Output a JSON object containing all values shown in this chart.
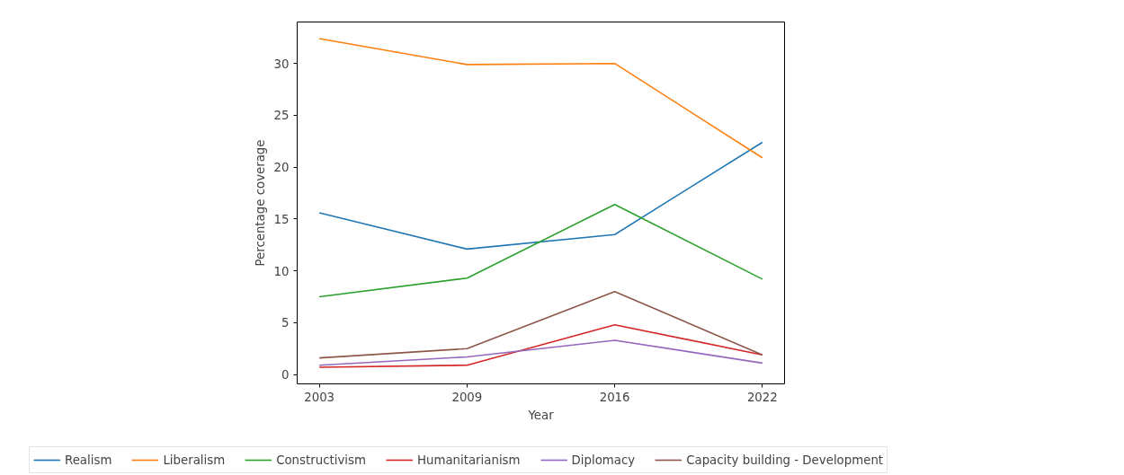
{
  "chart_data": {
    "type": "line",
    "xlabel": "Year",
    "ylabel": "Percentage coverage",
    "categories": [
      "2003",
      "2009",
      "2016",
      "2022"
    ],
    "ylim": [
      -0.9,
      34.0
    ],
    "yticks": [
      0,
      5,
      10,
      15,
      20,
      25,
      30
    ],
    "grid": false,
    "legend": "bottom",
    "series": [
      {
        "name": "Realism",
        "color": "#1f77b4",
        "values": [
          15.6,
          12.1,
          13.5,
          22.4
        ]
      },
      {
        "name": "Liberalism",
        "color": "#ff7f0e",
        "values": [
          32.4,
          29.9,
          30.0,
          20.9
        ]
      },
      {
        "name": "Constructivism",
        "color": "#2ca02c",
        "values": [
          7.5,
          9.3,
          16.4,
          9.2
        ]
      },
      {
        "name": "Humanitarianism",
        "color": "#d62728",
        "values": [
          0.7,
          0.9,
          4.8,
          1.9
        ]
      },
      {
        "name": "Diplomacy",
        "color": "#9467bd",
        "values": [
          0.9,
          1.7,
          3.3,
          1.1
        ]
      },
      {
        "name": "Capacity building - Development",
        "color": "#8c564b",
        "values": [
          1.6,
          2.5,
          8.0,
          1.9
        ]
      }
    ]
  }
}
